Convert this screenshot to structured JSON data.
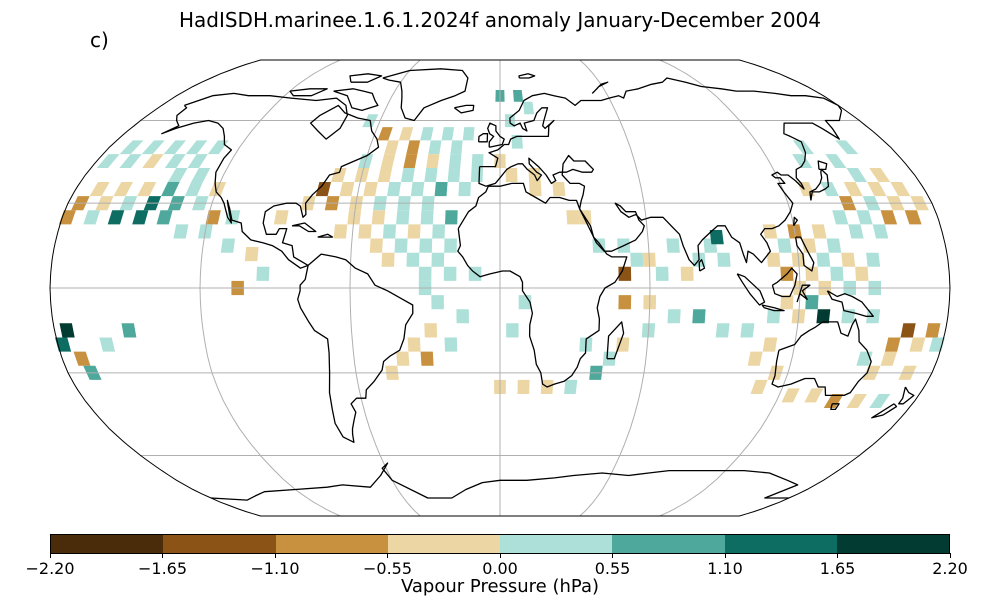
{
  "title": "HadISDH.marinee.1.6.1.2024f anomaly January-December 2004",
  "panel_label": "c)",
  "map": {
    "projection": "Robinson",
    "graticule": true,
    "ocean": "#ffffff",
    "coastline": "#000000",
    "gridline": "#b0b0b0"
  },
  "colorbar": {
    "label": "Vapour Pressure (hPa)",
    "ticks": [
      "−2.20",
      "−1.65",
      "−1.10",
      "−0.55",
      "0.00",
      "0.55",
      "1.10",
      "1.65",
      "2.20"
    ],
    "colors": [
      "#4a2c0a",
      "#8c5317",
      "#c8913f",
      "#ecd6a4",
      "#ade0d8",
      "#4fa89c",
      "#0d6d62",
      "#023b32"
    ]
  },
  "cells": [
    {
      "lon": -170,
      "lat": 50,
      "v": 0.3
    },
    {
      "lon": -160,
      "lat": 50,
      "v": 0.3
    },
    {
      "lon": -150,
      "lat": 50,
      "v": 0.3
    },
    {
      "lon": -140,
      "lat": 50,
      "v": 0.3
    },
    {
      "lon": -130,
      "lat": 50,
      "v": 0.3
    },
    {
      "lon": -175,
      "lat": 45,
      "v": 0.3
    },
    {
      "lon": -165,
      "lat": 45,
      "v": 0.3
    },
    {
      "lon": -155,
      "lat": 45,
      "v": -0.3
    },
    {
      "lon": -145,
      "lat": 45,
      "v": 0.3
    },
    {
      "lon": -135,
      "lat": 45,
      "v": 0.3
    },
    {
      "lon": -130,
      "lat": 40,
      "v": 0.3
    },
    {
      "lon": -140,
      "lat": 40,
      "v": 0.3
    },
    {
      "lon": -170,
      "lat": 35,
      "v": -0.3
    },
    {
      "lon": -160,
      "lat": 35,
      "v": -0.3
    },
    {
      "lon": -150,
      "lat": 35,
      "v": -0.3
    },
    {
      "lon": -140,
      "lat": 35,
      "v": 0.8
    },
    {
      "lon": -130,
      "lat": 35,
      "v": 0.3
    },
    {
      "lon": -120,
      "lat": 35,
      "v": -0.3
    },
    {
      "lon": -175,
      "lat": 30,
      "v": -0.9
    },
    {
      "lon": -165,
      "lat": 30,
      "v": -0.3
    },
    {
      "lon": -155,
      "lat": 30,
      "v": 0.3
    },
    {
      "lon": -145,
      "lat": 30,
      "v": 1.4
    },
    {
      "lon": -135,
      "lat": 30,
      "v": 0.8
    },
    {
      "lon": -125,
      "lat": 30,
      "v": 0.3
    },
    {
      "lon": -178,
      "lat": 25,
      "v": -0.9
    },
    {
      "lon": -168,
      "lat": 25,
      "v": 0.3
    },
    {
      "lon": -158,
      "lat": 25,
      "v": 1.4
    },
    {
      "lon": -148,
      "lat": 25,
      "v": 1.4
    },
    {
      "lon": -138,
      "lat": 25,
      "v": 0.8
    },
    {
      "lon": -118,
      "lat": 25,
      "v": -0.9
    },
    {
      "lon": -110,
      "lat": 25,
      "v": 0.3
    },
    {
      "lon": -130,
      "lat": 20,
      "v": 0.3
    },
    {
      "lon": -120,
      "lat": 20,
      "v": 0.3
    },
    {
      "lon": -110,
      "lat": 15,
      "v": 0.3
    },
    {
      "lon": -100,
      "lat": 12,
      "v": -0.3
    },
    {
      "lon": -65,
      "lat": 60,
      "v": 0.3
    },
    {
      "lon": -55,
      "lat": 55,
      "v": -0.9
    },
    {
      "lon": -45,
      "lat": 55,
      "v": -0.3
    },
    {
      "lon": -35,
      "lat": 55,
      "v": 0.3
    },
    {
      "lon": -25,
      "lat": 55,
      "v": 0.3
    },
    {
      "lon": -15,
      "lat": 55,
      "v": 0.3
    },
    {
      "lon": -50,
      "lat": 50,
      "v": -0.3
    },
    {
      "lon": -40,
      "lat": 50,
      "v": -0.9
    },
    {
      "lon": -30,
      "lat": 50,
      "v": 0.3
    },
    {
      "lon": -20,
      "lat": 50,
      "v": 0.3
    },
    {
      "lon": -60,
      "lat": 45,
      "v": 0.3
    },
    {
      "lon": -50,
      "lat": 45,
      "v": -0.3
    },
    {
      "lon": -40,
      "lat": 45,
      "v": -0.9
    },
    {
      "lon": -30,
      "lat": 45,
      "v": -0.3
    },
    {
      "lon": -20,
      "lat": 45,
      "v": 0.3
    },
    {
      "lon": -10,
      "lat": 45,
      "v": 0.3
    },
    {
      "lon": 0,
      "lat": 45,
      "v": -0.3
    },
    {
      "lon": 5,
      "lat": 40,
      "v": -0.3
    },
    {
      "lon": 15,
      "lat": 40,
      "v": -0.3
    },
    {
      "lon": -70,
      "lat": 40,
      "v": -0.3
    },
    {
      "lon": -60,
      "lat": 40,
      "v": -0.3
    },
    {
      "lon": -50,
      "lat": 40,
      "v": -0.3
    },
    {
      "lon": -40,
      "lat": 40,
      "v": 0.3
    },
    {
      "lon": -30,
      "lat": 40,
      "v": 0.3
    },
    {
      "lon": -20,
      "lat": 40,
      "v": 0.3
    },
    {
      "lon": -10,
      "lat": 40,
      "v": 0.3
    },
    {
      "lon": -75,
      "lat": 35,
      "v": -1.2
    },
    {
      "lon": -65,
      "lat": 35,
      "v": -0.3
    },
    {
      "lon": -55,
      "lat": 35,
      "v": -0.3
    },
    {
      "lon": -45,
      "lat": 35,
      "v": 0.3
    },
    {
      "lon": -35,
      "lat": 35,
      "v": 0.3
    },
    {
      "lon": -25,
      "lat": 35,
      "v": 0.8
    },
    {
      "lon": -15,
      "lat": 35,
      "v": 0.3
    },
    {
      "lon": -80,
      "lat": 30,
      "v": -0.3
    },
    {
      "lon": -70,
      "lat": 30,
      "v": -0.9
    },
    {
      "lon": -60,
      "lat": 30,
      "v": -0.3
    },
    {
      "lon": -50,
      "lat": 30,
      "v": 0.3
    },
    {
      "lon": -40,
      "lat": 30,
      "v": 0.3
    },
    {
      "lon": -30,
      "lat": 30,
      "v": 0.3
    },
    {
      "lon": -90,
      "lat": 25,
      "v": -0.3
    },
    {
      "lon": -60,
      "lat": 25,
      "v": -0.3
    },
    {
      "lon": -50,
      "lat": 25,
      "v": -0.3
    },
    {
      "lon": -40,
      "lat": 25,
      "v": 0.3
    },
    {
      "lon": -30,
      "lat": 25,
      "v": 0.3
    },
    {
      "lon": -20,
      "lat": 25,
      "v": 0.8
    },
    {
      "lon": -65,
      "lat": 20,
      "v": -0.3
    },
    {
      "lon": -55,
      "lat": 20,
      "v": -0.3
    },
    {
      "lon": -45,
      "lat": 20,
      "v": 0.3
    },
    {
      "lon": -35,
      "lat": 20,
      "v": -0.3
    },
    {
      "lon": -25,
      "lat": 20,
      "v": 0.3
    },
    {
      "lon": -50,
      "lat": 15,
      "v": -0.3
    },
    {
      "lon": -40,
      "lat": 15,
      "v": 0.3
    },
    {
      "lon": -30,
      "lat": 15,
      "v": 0.3
    },
    {
      "lon": -20,
      "lat": 15,
      "v": 0.3
    },
    {
      "lon": -45,
      "lat": 10,
      "v": -0.3
    },
    {
      "lon": -35,
      "lat": 10,
      "v": 0.3
    },
    {
      "lon": -25,
      "lat": 10,
      "v": 0.3
    },
    {
      "lon": -30,
      "lat": 5,
      "v": 0.3
    },
    {
      "lon": -20,
      "lat": 5,
      "v": 0.3
    },
    {
      "lon": -10,
      "lat": 5,
      "v": 0.3
    },
    {
      "lon": -30,
      "lat": 0,
      "v": 0.3
    },
    {
      "lon": -25,
      "lat": -5,
      "v": 0.3
    },
    {
      "lon": -15,
      "lat": -10,
      "v": 0.3
    },
    {
      "lon": -28,
      "lat": -15,
      "v": -0.3
    },
    {
      "lon": -20,
      "lat": -20,
      "v": 0.3
    },
    {
      "lon": -35,
      "lat": -20,
      "v": -0.3
    },
    {
      "lon": -40,
      "lat": -25,
      "v": -0.3
    },
    {
      "lon": -30,
      "lat": -25,
      "v": -0.9
    },
    {
      "lon": -45,
      "lat": -30,
      "v": -0.3
    },
    {
      "lon": -105,
      "lat": 0,
      "v": -0.9
    },
    {
      "lon": -95,
      "lat": 5,
      "v": 0.3
    },
    {
      "lon": 0,
      "lat": 70,
      "v": 0.8
    },
    {
      "lon": 10,
      "lat": 70,
      "v": 0.8
    },
    {
      "lon": 15,
      "lat": 65,
      "v": 0.3
    },
    {
      "lon": 5,
      "lat": 60,
      "v": 0.3
    },
    {
      "lon": 8,
      "lat": 52,
      "v": 0.3
    },
    {
      "lon": 15,
      "lat": 35,
      "v": -0.3
    },
    {
      "lon": 25,
      "lat": 35,
      "v": -0.3
    },
    {
      "lon": 30,
      "lat": 25,
      "v": -0.3
    },
    {
      "lon": 35,
      "lat": 25,
      "v": -0.3
    },
    {
      "lon": 40,
      "lat": 15,
      "v": 0.3
    },
    {
      "lon": 50,
      "lat": 15,
      "v": 0.3
    },
    {
      "lon": 55,
      "lat": 10,
      "v": 0.3
    },
    {
      "lon": 50,
      "lat": 5,
      "v": -1.5
    },
    {
      "lon": 60,
      "lat": 10,
      "v": -0.3
    },
    {
      "lon": 70,
      "lat": 15,
      "v": 0.3
    },
    {
      "lon": 65,
      "lat": 5,
      "v": 0.3
    },
    {
      "lon": 75,
      "lat": 5,
      "v": -0.3
    },
    {
      "lon": 85,
      "lat": 15,
      "v": 0.3
    },
    {
      "lon": 88,
      "lat": 18,
      "v": 1.4
    },
    {
      "lon": 80,
      "lat": 10,
      "v": 0.3
    },
    {
      "lon": 90,
      "lat": 10,
      "v": 0.3
    },
    {
      "lon": 50,
      "lat": -5,
      "v": -0.9
    },
    {
      "lon": 60,
      "lat": -5,
      "v": -0.3
    },
    {
      "lon": 70,
      "lat": -10,
      "v": 0.3
    },
    {
      "lon": 80,
      "lat": -10,
      "v": 0.8
    },
    {
      "lon": 90,
      "lat": -15,
      "v": 0.3
    },
    {
      "lon": 60,
      "lat": -15,
      "v": 0.3
    },
    {
      "lon": 50,
      "lat": -20,
      "v": -0.3
    },
    {
      "lon": 45,
      "lat": -25,
      "v": 0.3
    },
    {
      "lon": 35,
      "lat": -20,
      "v": 0.3
    },
    {
      "lon": 40,
      "lat": -30,
      "v": 0.8
    },
    {
      "lon": 30,
      "lat": -35,
      "v": 0.3
    },
    {
      "lon": 20,
      "lat": -35,
      "v": -0.3
    },
    {
      "lon": 10,
      "lat": -35,
      "v": -0.3
    },
    {
      "lon": 0,
      "lat": -35,
      "v": -0.3
    },
    {
      "lon": 5,
      "lat": -15,
      "v": 0.3
    },
    {
      "lon": 10,
      "lat": -5,
      "v": 0.3
    },
    {
      "lon": 110,
      "lat": 20,
      "v": -0.3
    },
    {
      "lon": 120,
      "lat": 20,
      "v": -0.9
    },
    {
      "lon": 130,
      "lat": 20,
      "v": -0.3
    },
    {
      "lon": 115,
      "lat": 15,
      "v": 0.3
    },
    {
      "lon": 125,
      "lat": 15,
      "v": -0.3
    },
    {
      "lon": 135,
      "lat": 15,
      "v": 0.3
    },
    {
      "lon": 110,
      "lat": 10,
      "v": -0.3
    },
    {
      "lon": 120,
      "lat": 10,
      "v": -0.3
    },
    {
      "lon": 130,
      "lat": 10,
      "v": 0.3
    },
    {
      "lon": 140,
      "lat": 10,
      "v": -0.3
    },
    {
      "lon": 150,
      "lat": 10,
      "v": 0.3
    },
    {
      "lon": 115,
      "lat": 5,
      "v": -0.9
    },
    {
      "lon": 125,
      "lat": 5,
      "v": -0.3
    },
    {
      "lon": 135,
      "lat": 5,
      "v": 0.3
    },
    {
      "lon": 145,
      "lat": 5,
      "v": -0.3
    },
    {
      "lon": 130,
      "lat": 35,
      "v": -0.3
    },
    {
      "lon": 140,
      "lat": 35,
      "v": 0.3
    },
    {
      "lon": 150,
      "lat": 35,
      "v": -0.3
    },
    {
      "lon": 160,
      "lat": 35,
      "v": -0.3
    },
    {
      "lon": 170,
      "lat": 35,
      "v": -0.3
    },
    {
      "lon": 145,
      "lat": 30,
      "v": -0.9
    },
    {
      "lon": 155,
      "lat": 30,
      "v": 0.3
    },
    {
      "lon": 165,
      "lat": 30,
      "v": -0.3
    },
    {
      "lon": 175,
      "lat": 30,
      "v": -0.3
    },
    {
      "lon": 140,
      "lat": 25,
      "v": 0.3
    },
    {
      "lon": 150,
      "lat": 25,
      "v": 0.3
    },
    {
      "lon": 160,
      "lat": 25,
      "v": -0.9
    },
    {
      "lon": 170,
      "lat": 25,
      "v": -0.9
    },
    {
      "lon": 135,
      "lat": 45,
      "v": 0.3
    },
    {
      "lon": 150,
      "lat": 45,
      "v": 0.3
    },
    {
      "lon": 160,
      "lat": 50,
      "v": 0.3
    },
    {
      "lon": 140,
      "lat": 50,
      "v": 0.3
    },
    {
      "lon": 165,
      "lat": 40,
      "v": -0.3
    },
    {
      "lon": 155,
      "lat": 40,
      "v": 0.3
    },
    {
      "lon": 145,
      "lat": 20,
      "v": 0.3
    },
    {
      "lon": 155,
      "lat": 20,
      "v": 0.3
    },
    {
      "lon": 120,
      "lat": 0,
      "v": -0.3
    },
    {
      "lon": 130,
      "lat": 0,
      "v": -0.3
    },
    {
      "lon": 140,
      "lat": 0,
      "v": 0.3
    },
    {
      "lon": 150,
      "lat": 0,
      "v": 0.3
    },
    {
      "lon": 115,
      "lat": -5,
      "v": -0.3
    },
    {
      "lon": 125,
      "lat": -5,
      "v": 0.8
    },
    {
      "lon": 110,
      "lat": -10,
      "v": 0.3
    },
    {
      "lon": 120,
      "lat": -10,
      "v": -0.3
    },
    {
      "lon": 130,
      "lat": -10,
      "v": 2.0
    },
    {
      "lon": 140,
      "lat": -10,
      "v": 0.3
    },
    {
      "lon": 150,
      "lat": -10,
      "v": 0.3
    },
    {
      "lon": 100,
      "lat": -15,
      "v": 0.3
    },
    {
      "lon": 110,
      "lat": -20,
      "v": -0.3
    },
    {
      "lon": 105,
      "lat": -25,
      "v": -0.3
    },
    {
      "lon": 115,
      "lat": -30,
      "v": -0.3
    },
    {
      "lon": 110,
      "lat": -35,
      "v": -0.3
    },
    {
      "lon": 125,
      "lat": -38,
      "v": -0.3
    },
    {
      "lon": 135,
      "lat": -38,
      "v": -0.3
    },
    {
      "lon": 145,
      "lat": -40,
      "v": -0.9
    },
    {
      "lon": 155,
      "lat": -40,
      "v": -0.3
    },
    {
      "lon": 165,
      "lat": -40,
      "v": 0.3
    },
    {
      "lon": 155,
      "lat": -30,
      "v": -0.3
    },
    {
      "lon": 160,
      "lat": -25,
      "v": -0.3
    },
    {
      "lon": 170,
      "lat": -20,
      "v": -0.3
    },
    {
      "lon": 165,
      "lat": -15,
      "v": -1.5
    },
    {
      "lon": 175,
      "lat": -15,
      "v": -0.9
    },
    {
      "lon": 178,
      "lat": -20,
      "v": 0.3
    },
    {
      "lon": 170,
      "lat": -30,
      "v": -0.3
    },
    {
      "lon": 160,
      "lat": -20,
      "v": -0.9
    },
    {
      "lon": 150,
      "lat": -25,
      "v": 0.3
    },
    {
      "lon": -175,
      "lat": -15,
      "v": 1.9
    },
    {
      "lon": -178,
      "lat": -20,
      "v": 1.2
    },
    {
      "lon": -172,
      "lat": -25,
      "v": -0.9
    },
    {
      "lon": -170,
      "lat": -30,
      "v": 0.8
    },
    {
      "lon": -160,
      "lat": -20,
      "v": 0.3
    },
    {
      "lon": -150,
      "lat": -15,
      "v": 0.8
    }
  ]
}
